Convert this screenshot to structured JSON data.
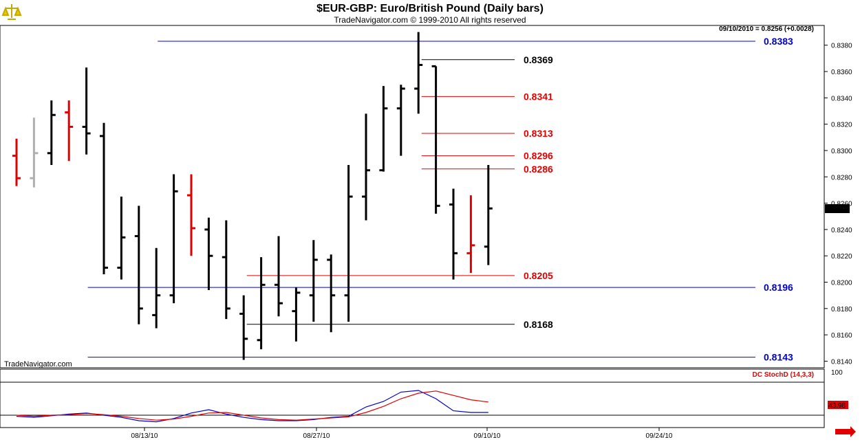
{
  "header": {
    "title": "$EUR-GBP:  Euro/British Pound  (Daily bars)",
    "copyright": "TradeNavigator.com © 1999-2010 All rights reserved",
    "quote": "09/10/2010 = 0.8256 (+0.0028)"
  },
  "watermark": "TradeNavigator.com",
  "icons": {
    "logo": "scales-logo-icon",
    "scroll": "scroll-right-arrow-icon"
  },
  "colors": {
    "up": "#000000",
    "down": "#e00000",
    "neutral": "#b0b0b0",
    "blue_level": "#0000cc",
    "red_level": "#e00000",
    "black_level": "#000000"
  },
  "chart_data": {
    "type": "ohlc",
    "title": "$EUR-GBP:  Euro/British Pound  (Daily bars)",
    "ylim": [
      0.8135,
      0.8395
    ],
    "yticks": [
      "0.8140",
      "0.8160",
      "0.8180",
      "0.8200",
      "0.8220",
      "0.8240",
      "0.8260",
      "0.8280",
      "0.8300",
      "0.8320",
      "0.8340",
      "0.8360",
      "0.8380"
    ],
    "xticks": [
      "08/13/10",
      "08/27/10",
      "09/10/10",
      "09/24/10"
    ],
    "last_price": "0.8256",
    "bars": [
      {
        "o": 0.8296,
        "h": 0.8309,
        "l": 0.8273,
        "c": 0.8279,
        "color": "down"
      },
      {
        "o": 0.8279,
        "h": 0.8325,
        "l": 0.8272,
        "c": 0.8298,
        "color": "neutral"
      },
      {
        "o": 0.8298,
        "h": 0.8338,
        "l": 0.8289,
        "c": 0.8327,
        "color": "up"
      },
      {
        "o": 0.8329,
        "h": 0.8338,
        "l": 0.8292,
        "c": 0.8318,
        "color": "down"
      },
      {
        "o": 0.8318,
        "h": 0.8363,
        "l": 0.8297,
        "c": 0.8313,
        "color": "up"
      },
      {
        "o": 0.8311,
        "h": 0.8321,
        "l": 0.8206,
        "c": 0.8211,
        "color": "up"
      },
      {
        "o": 0.8211,
        "h": 0.8265,
        "l": 0.8202,
        "c": 0.8234,
        "color": "up"
      },
      {
        "o": 0.8235,
        "h": 0.8258,
        "l": 0.8168,
        "c": 0.818,
        "color": "up"
      },
      {
        "o": 0.8175,
        "h": 0.8226,
        "l": 0.8165,
        "c": 0.819,
        "color": "up"
      },
      {
        "o": 0.819,
        "h": 0.8282,
        "l": 0.8184,
        "c": 0.8269,
        "color": "up"
      },
      {
        "o": 0.8266,
        "h": 0.8282,
        "l": 0.822,
        "c": 0.8241,
        "color": "down"
      },
      {
        "o": 0.824,
        "h": 0.8249,
        "l": 0.8194,
        "c": 0.822,
        "color": "up"
      },
      {
        "o": 0.8219,
        "h": 0.8247,
        "l": 0.8172,
        "c": 0.818,
        "color": "up"
      },
      {
        "o": 0.8176,
        "h": 0.819,
        "l": 0.8141,
        "c": 0.8157,
        "color": "up"
      },
      {
        "o": 0.8156,
        "h": 0.8219,
        "l": 0.8149,
        "c": 0.8198,
        "color": "up"
      },
      {
        "o": 0.8198,
        "h": 0.8235,
        "l": 0.8174,
        "c": 0.8184,
        "color": "up"
      },
      {
        "o": 0.8178,
        "h": 0.8196,
        "l": 0.8155,
        "c": 0.8192,
        "color": "up"
      },
      {
        "o": 0.819,
        "h": 0.8232,
        "l": 0.817,
        "c": 0.8217,
        "color": "up"
      },
      {
        "o": 0.8217,
        "h": 0.8221,
        "l": 0.8162,
        "c": 0.819,
        "color": "up"
      },
      {
        "o": 0.819,
        "h": 0.8289,
        "l": 0.817,
        "c": 0.8265,
        "color": "up"
      },
      {
        "o": 0.8265,
        "h": 0.8328,
        "l": 0.8247,
        "c": 0.8285,
        "color": "up"
      },
      {
        "o": 0.8285,
        "h": 0.8349,
        "l": 0.8284,
        "c": 0.8332,
        "color": "up"
      },
      {
        "o": 0.8332,
        "h": 0.835,
        "l": 0.8296,
        "c": 0.8347,
        "color": "up"
      },
      {
        "o": 0.8347,
        "h": 0.839,
        "l": 0.8328,
        "c": 0.8365,
        "color": "up"
      },
      {
        "o": 0.8364,
        "h": 0.8364,
        "l": 0.8252,
        "c": 0.8258,
        "color": "up"
      },
      {
        "o": 0.8259,
        "h": 0.8271,
        "l": 0.8202,
        "c": 0.8222,
        "color": "up"
      },
      {
        "o": 0.8222,
        "h": 0.8266,
        "l": 0.8207,
        "c": 0.8228,
        "color": "down"
      },
      {
        "o": 0.8227,
        "h": 0.8289,
        "l": 0.8213,
        "c": 0.8256,
        "color": "up"
      }
    ],
    "levels": [
      {
        "label": "0.8383",
        "value": 0.8383,
        "color": "blue_level",
        "from": 8
      },
      {
        "label": "0.8369",
        "value": 0.8369,
        "color": "black_level",
        "from": 23.1
      },
      {
        "label": "0.8341",
        "value": 0.8341,
        "color": "red_level",
        "from": 23.1
      },
      {
        "label": "0.8313",
        "value": 0.8313,
        "color": "red_level",
        "from": 23.1
      },
      {
        "label": "0.8296",
        "value": 0.8296,
        "color": "red_level",
        "from": 23.1
      },
      {
        "label": "0.8286",
        "value": 0.8286,
        "color": "red_level",
        "from": 23.1
      },
      {
        "label": "0.8205",
        "value": 0.8205,
        "color": "red_level",
        "from": 13.1
      },
      {
        "label": "0.8196",
        "value": 0.8196,
        "color": "blue_level",
        "from": 4
      },
      {
        "label": "0.8168",
        "value": 0.8168,
        "color": "black_level",
        "from": 13.1
      },
      {
        "label": "0.8143",
        "value": 0.8143,
        "color": "blue_level",
        "from": 4
      }
    ],
    "indicator": {
      "name": "DC StochD (14,3,3)",
      "ylim": [
        0,
        100
      ],
      "yticks": [
        "100"
      ],
      "hlines": [
        80,
        20
      ],
      "last_label": "43.98",
      "lines": [
        {
          "color": "#0000cc",
          "values": [
            18,
            16,
            19,
            22,
            24,
            20,
            16,
            10,
            8,
            14,
            24,
            30,
            22,
            16,
            12,
            10,
            10,
            12,
            16,
            18,
            35,
            45,
            62,
            65,
            50,
            28,
            25,
            25
          ]
        },
        {
          "color": "#e00000",
          "values": [
            20,
            18,
            20,
            21,
            23,
            21,
            18,
            14,
            11,
            13,
            18,
            24,
            25,
            20,
            15,
            12,
            11,
            13,
            15,
            17,
            25,
            36,
            50,
            60,
            64,
            56,
            48,
            43.98
          ]
        }
      ]
    }
  }
}
